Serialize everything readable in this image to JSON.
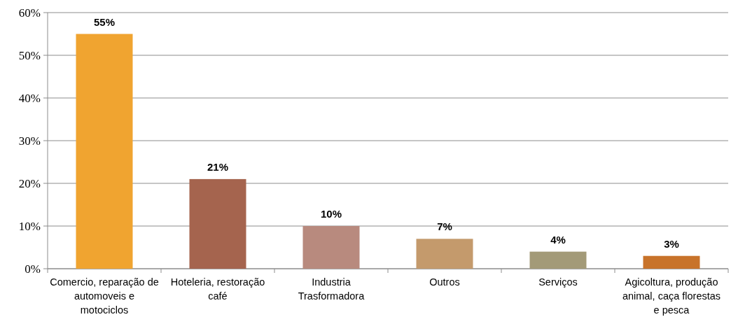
{
  "chart_data": {
    "type": "bar",
    "categories": [
      "Comercio, reparação de automoveis e motociclos",
      "Hoteleria, restoração café",
      "Industria Trasformadora",
      "Outros",
      "Serviços",
      "Agicoltura, produção animal, caça florestas e pesca"
    ],
    "values": [
      55,
      21,
      10,
      7,
      4,
      3
    ],
    "colors": [
      "#f0a430",
      "#a5644e",
      "#b88a7e",
      "#c49a6c",
      "#a39a78",
      "#c8732a"
    ],
    "value_labels": [
      "55%",
      "21%",
      "10%",
      "7%",
      "4%",
      "3%"
    ],
    "ylim": [
      0,
      60
    ],
    "yticks": [
      {
        "value": 0,
        "label": "0%"
      },
      {
        "value": 10,
        "label": "10%"
      },
      {
        "value": 20,
        "label": "20%"
      },
      {
        "value": 30,
        "label": "30%"
      },
      {
        "value": 40,
        "label": "40%"
      },
      {
        "value": 50,
        "label": "50%"
      },
      {
        "value": 60,
        "label": "60%"
      }
    ],
    "grid": "y"
  }
}
